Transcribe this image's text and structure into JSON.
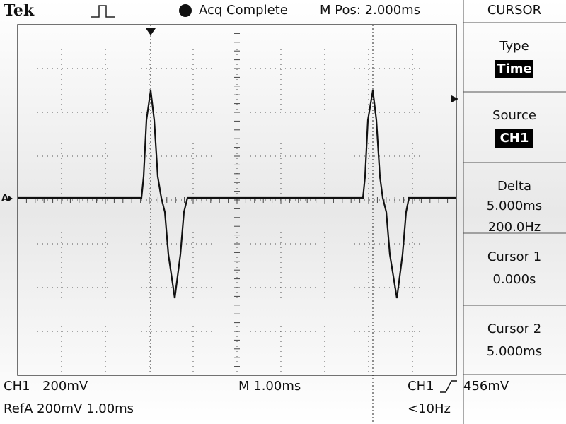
{
  "header": {
    "brand": "Tek",
    "status": "Acq Complete",
    "position": "M Pos: 2.000ms"
  },
  "reference_marker": "A",
  "menu": {
    "title": "CURSOR",
    "items": [
      {
        "label": "Type",
        "lines": [
          "Time"
        ]
      },
      {
        "label": "Source",
        "lines": [
          "CH1"
        ]
      },
      {
        "label": "Delta",
        "lines": [
          "5.000ms",
          "200.0Hz"
        ]
      },
      {
        "label": "Cursor 1",
        "lines": [
          "0.000s"
        ]
      },
      {
        "label": "Cursor 2",
        "lines": [
          "5.000ms"
        ]
      }
    ]
  },
  "footer": {
    "channel": "CH1",
    "scale": "200mV",
    "timebase": "M 1.00ms",
    "trigger_source": "CH1",
    "trigger_level": "456mV",
    "reference": "RefA 200mV 1.00ms",
    "frequency": "<10Hz"
  }
}
